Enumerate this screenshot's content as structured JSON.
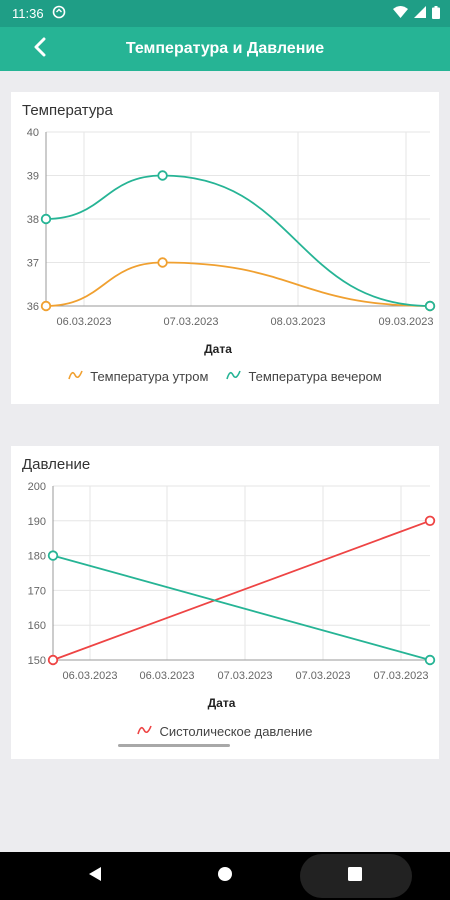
{
  "status_bar": {
    "time": "11:36"
  },
  "app_bar": {
    "title": "Температура и Давление"
  },
  "temperature_card": {
    "title": "Температура",
    "chart_data": {
      "type": "line",
      "xlabel": "Дата",
      "x_ticks": [
        "06.03.2023",
        "07.03.2023",
        "08.03.2023",
        "09.03.2023"
      ],
      "ylim": [
        36,
        40
      ],
      "y_ticks": [
        36,
        37,
        38,
        39,
        40
      ],
      "grid": true,
      "legend_position": "bottom",
      "series": [
        {
          "name": "Температура утром",
          "color": "#f0a030",
          "points": [
            [
              0,
              36
            ],
            [
              0.85,
              37
            ],
            [
              2.8,
              36
            ]
          ]
        },
        {
          "name": "Температура вечером",
          "color": "#26b495",
          "points": [
            [
              0,
              38
            ],
            [
              0.85,
              39
            ],
            [
              2.8,
              36
            ]
          ]
        }
      ]
    }
  },
  "pressure_card": {
    "title": "Давление",
    "chart_data": {
      "type": "line",
      "xlabel": "Дата",
      "x_ticks": [
        "06.03.2023",
        "06.03.2023",
        "07.03.2023",
        "07.03.2023",
        "07.03.2023"
      ],
      "ylim": [
        150,
        200
      ],
      "y_ticks": [
        150,
        160,
        170,
        180,
        190,
        200
      ],
      "grid": true,
      "legend_position": "bottom",
      "series": [
        {
          "name": "Систолическое давление",
          "color": "#ee4444",
          "points": [
            [
              0,
              150
            ],
            [
              1,
              190
            ]
          ]
        },
        {
          "name": "",
          "color": "#26b495",
          "points": [
            [
              0,
              180
            ],
            [
              1,
              150
            ]
          ]
        }
      ]
    }
  }
}
